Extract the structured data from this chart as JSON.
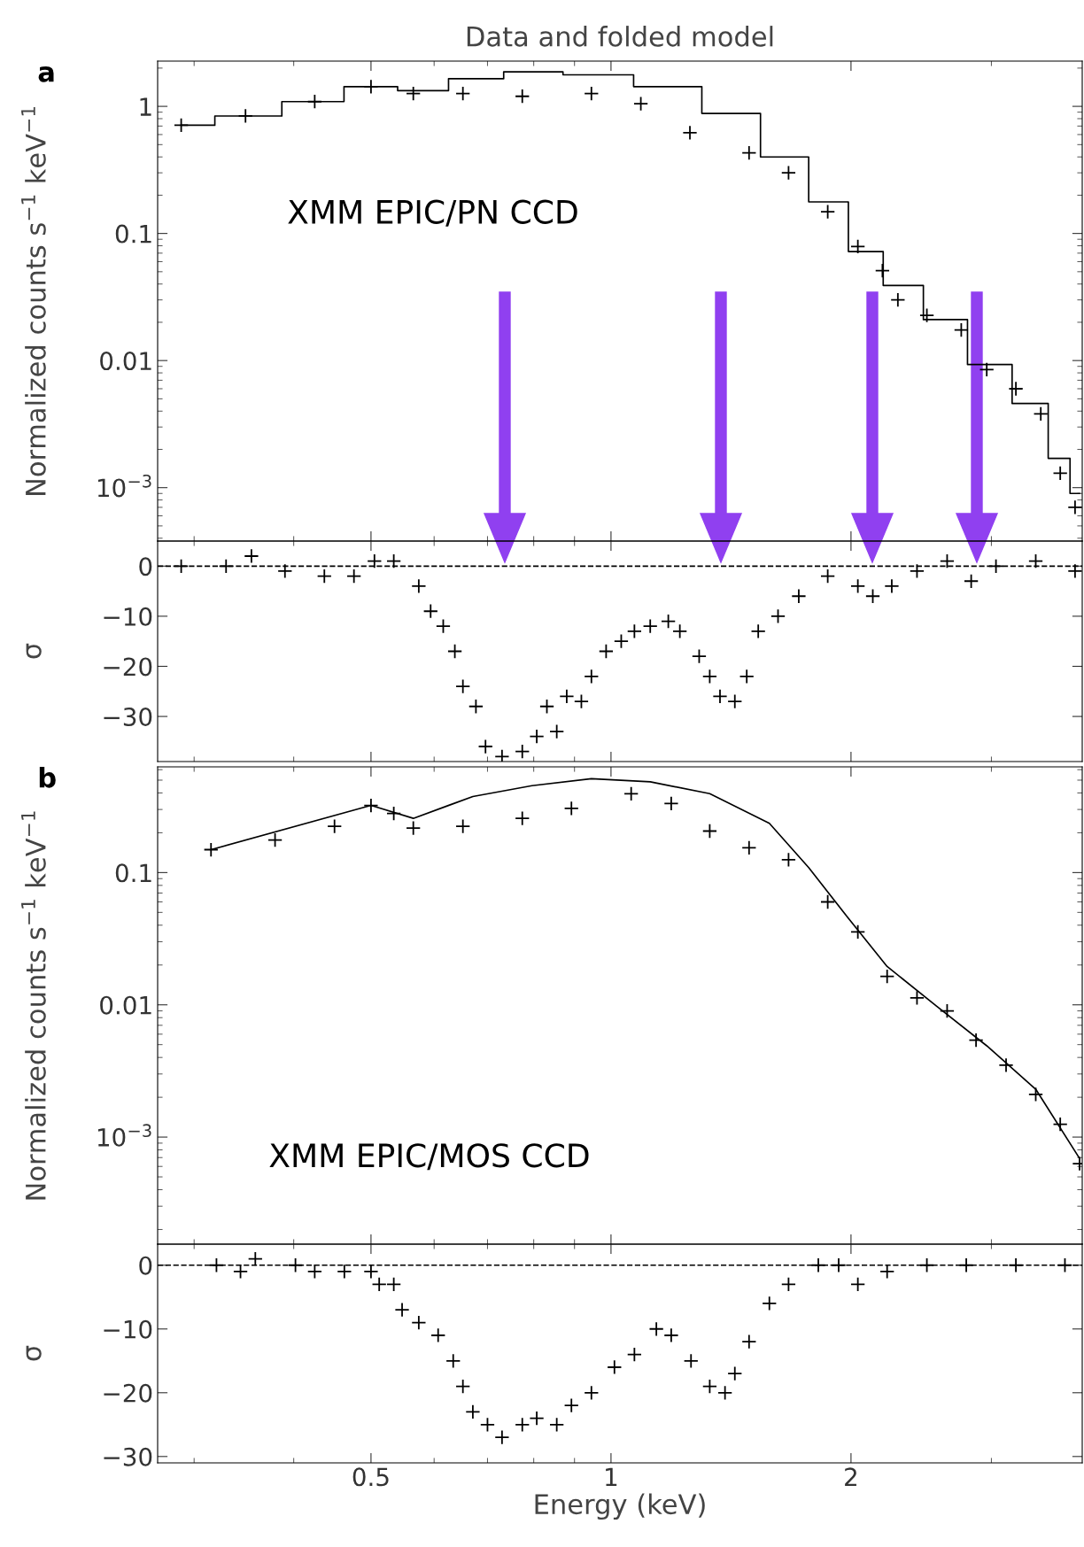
{
  "chart_data": [
    {
      "type": "scatter",
      "title": "Data and folded model",
      "ylabel": "Normalized counts s$^{−1}$ keV$^{−1}$",
      "log": "xy",
      "xlim": [
        0.27,
        3.9
      ],
      "xticks": [
        0.5,
        1,
        2
      ],
      "ylim": [
        0.00038,
        2.27
      ],
      "yticks": [
        1,
        0.1,
        0.01,
        {
          "value": 0.001,
          "label": "10$^{−3}$"
        }
      ],
      "tick_labels": "y",
      "marker": "cross",
      "annotations": [
        "a",
        "XMM EPIC/PN CCD"
      ],
      "series": [
        {
          "color": "#000000",
          "x": [
            0.289,
            0.348,
            0.425,
            0.5,
            0.565,
            0.652,
            0.774,
            0.945,
            1.09,
            1.256,
            1.49,
            1.67,
            1.87,
            2.04,
            2.19,
            2.29,
            2.49,
            2.75,
            2.96,
            3.22,
            3.46,
            3.66,
            3.82
          ],
          "values": [
            0.71,
            0.84,
            1.09,
            1.43,
            1.26,
            1.26,
            1.2,
            1.26,
            1.05,
            0.62,
            0.43,
            0.3,
            0.148,
            0.079,
            0.051,
            0.03,
            0.0227,
            0.0174,
            0.0085,
            0.006,
            0.0038,
            0.0013,
            0.0007
          ]
        },
        {
          "type": "step",
          "marker": "none",
          "color": "#000000",
          "x": [
            0.289,
            0.348,
            0.425,
            0.5,
            0.58,
            0.671,
            0.796,
            0.945,
            1.19,
            1.41,
            1.67,
            1.87,
            2.1,
            2.29,
            2.64,
            2.96,
            3.41,
            3.66,
            3.87
          ],
          "values": [
            0.71,
            0.84,
            1.09,
            1.43,
            1.33,
            1.65,
            1.87,
            1.77,
            1.43,
            0.88,
            0.4,
            0.177,
            0.072,
            0.039,
            0.021,
            0.0093,
            0.0046,
            0.0017,
            0.0009
          ]
        }
      ]
    },
    {
      "type": "scatter",
      "ylabel": "σ",
      "log": "x",
      "xlim": [
        0.27,
        3.9
      ],
      "xticks": [
        0.5,
        1,
        2
      ],
      "ylim": [
        -39,
        5
      ],
      "yticks": [
        0,
        -10,
        -20,
        -30
      ],
      "tick_labels": "y",
      "marker": "cross",
      "ref_lines": [
        {
          "axis": "y",
          "value": 0,
          "line_style": "dashed",
          "color": "#000000"
        }
      ],
      "series": [
        {
          "color": "#000000",
          "x": [
            0.289,
            0.329,
            0.354,
            0.39,
            0.437,
            0.476,
            0.505,
            0.534,
            0.574,
            0.594,
            0.616,
            0.637,
            0.652,
            0.677,
            0.696,
            0.73,
            0.774,
            0.807,
            0.831,
            0.855,
            0.88,
            0.918,
            0.945,
            0.986,
            1.03,
            1.07,
            1.12,
            1.18,
            1.22,
            1.29,
            1.33,
            1.37,
            1.43,
            1.48,
            1.53,
            1.62,
            1.72,
            1.87,
            2.04,
            2.13,
            2.25,
            2.42,
            2.64,
            2.83,
            3.04,
            3.41,
            3.82
          ],
          "values": [
            0,
            0,
            2,
            -1,
            -2,
            -2,
            1,
            1,
            -4,
            -9,
            -12,
            -17,
            -24,
            -28,
            -36,
            -38,
            -37,
            -34,
            -28,
            -33,
            -26,
            -27,
            -22,
            -17,
            -15,
            -13,
            -12,
            -11,
            -13,
            -18,
            -22,
            -26,
            -27,
            -22,
            -13,
            -10,
            -6,
            -2,
            -4,
            -6,
            -4,
            -1,
            1,
            -3,
            0,
            1,
            -1
          ]
        }
      ]
    },
    {
      "type": "scatter",
      "ylabel": "Normalized counts s$^{−1}$ keV$^{−1}$",
      "log": "xy",
      "xlim": [
        0.27,
        3.9
      ],
      "xticks": [
        0.5,
        1,
        2
      ],
      "ylim": [
        0.000155,
        0.63
      ],
      "yticks": [
        0.1,
        0.01,
        {
          "value": 0.001,
          "label": "10$^{−3}$"
        }
      ],
      "tick_labels": "y",
      "marker": "cross",
      "annotations": [
        "b",
        "XMM EPIC/MOS CCD"
      ],
      "series": [
        {
          "color": "#000000",
          "x": [
            0.315,
            0.379,
            0.45,
            0.5,
            0.534,
            0.565,
            0.652,
            0.774,
            0.892,
            1.06,
            1.19,
            1.33,
            1.49,
            1.67,
            1.87,
            2.04,
            2.22,
            2.42,
            2.64,
            2.87,
            3.13,
            3.41,
            3.66,
            3.87
          ],
          "values": [
            0.149,
            0.176,
            0.224,
            0.322,
            0.28,
            0.217,
            0.224,
            0.257,
            0.306,
            0.395,
            0.333,
            0.206,
            0.154,
            0.125,
            0.06,
            0.0356,
            0.0164,
            0.0113,
            0.009,
            0.0054,
            0.0035,
            0.0021,
            0.00125,
            0.00063
          ]
        },
        {
          "type": "line",
          "marker": "none",
          "color": "#000000",
          "x": [
            0.315,
            0.5,
            0.565,
            0.671,
            0.796,
            0.945,
            1.12,
            1.33,
            1.58,
            1.77,
            1.98,
            2.22,
            2.56,
            2.96,
            3.41,
            3.87
          ],
          "values": [
            0.149,
            0.322,
            0.257,
            0.376,
            0.454,
            0.512,
            0.486,
            0.395,
            0.236,
            0.109,
            0.046,
            0.0195,
            0.0098,
            0.0049,
            0.0023,
            0.00069
          ]
        }
      ]
    },
    {
      "type": "scatter",
      "ylabel": "σ",
      "xlabel": "Energy (keV)",
      "log": "x",
      "xlim": [
        0.27,
        3.9
      ],
      "xticks": [
        0.5,
        1,
        2
      ],
      "ylim": [
        -31,
        3.3
      ],
      "yticks": [
        0,
        -10,
        -20,
        -30
      ],
      "marker": "cross",
      "ref_lines": [
        {
          "axis": "y",
          "value": 0,
          "line_style": "dashed",
          "color": "#000000"
        }
      ],
      "series": [
        {
          "color": "#000000",
          "x": [
            0.32,
            0.343,
            0.358,
            0.402,
            0.425,
            0.463,
            0.5,
            0.512,
            0.534,
            0.547,
            0.574,
            0.607,
            0.634,
            0.652,
            0.671,
            0.7,
            0.73,
            0.774,
            0.807,
            0.855,
            0.892,
            0.945,
            1.01,
            1.07,
            1.14,
            1.19,
            1.26,
            1.33,
            1.39,
            1.43,
            1.49,
            1.58,
            1.67,
            1.82,
            1.93,
            2.04,
            2.22,
            2.49,
            2.79,
            3.22,
            3.71
          ],
          "values": [
            0,
            -1,
            1,
            0,
            -1,
            -1,
            -1,
            -3,
            -3,
            -7,
            -9,
            -11,
            -15,
            -19,
            -23,
            -25,
            -27,
            -25,
            -24,
            -25,
            -22,
            -20,
            -16,
            -14,
            -10,
            -11,
            -15,
            -19,
            -20,
            -17,
            -12,
            -6,
            -3,
            0,
            0,
            -3,
            -1,
            0,
            0,
            0,
            0
          ]
        }
      ]
    }
  ]
}
